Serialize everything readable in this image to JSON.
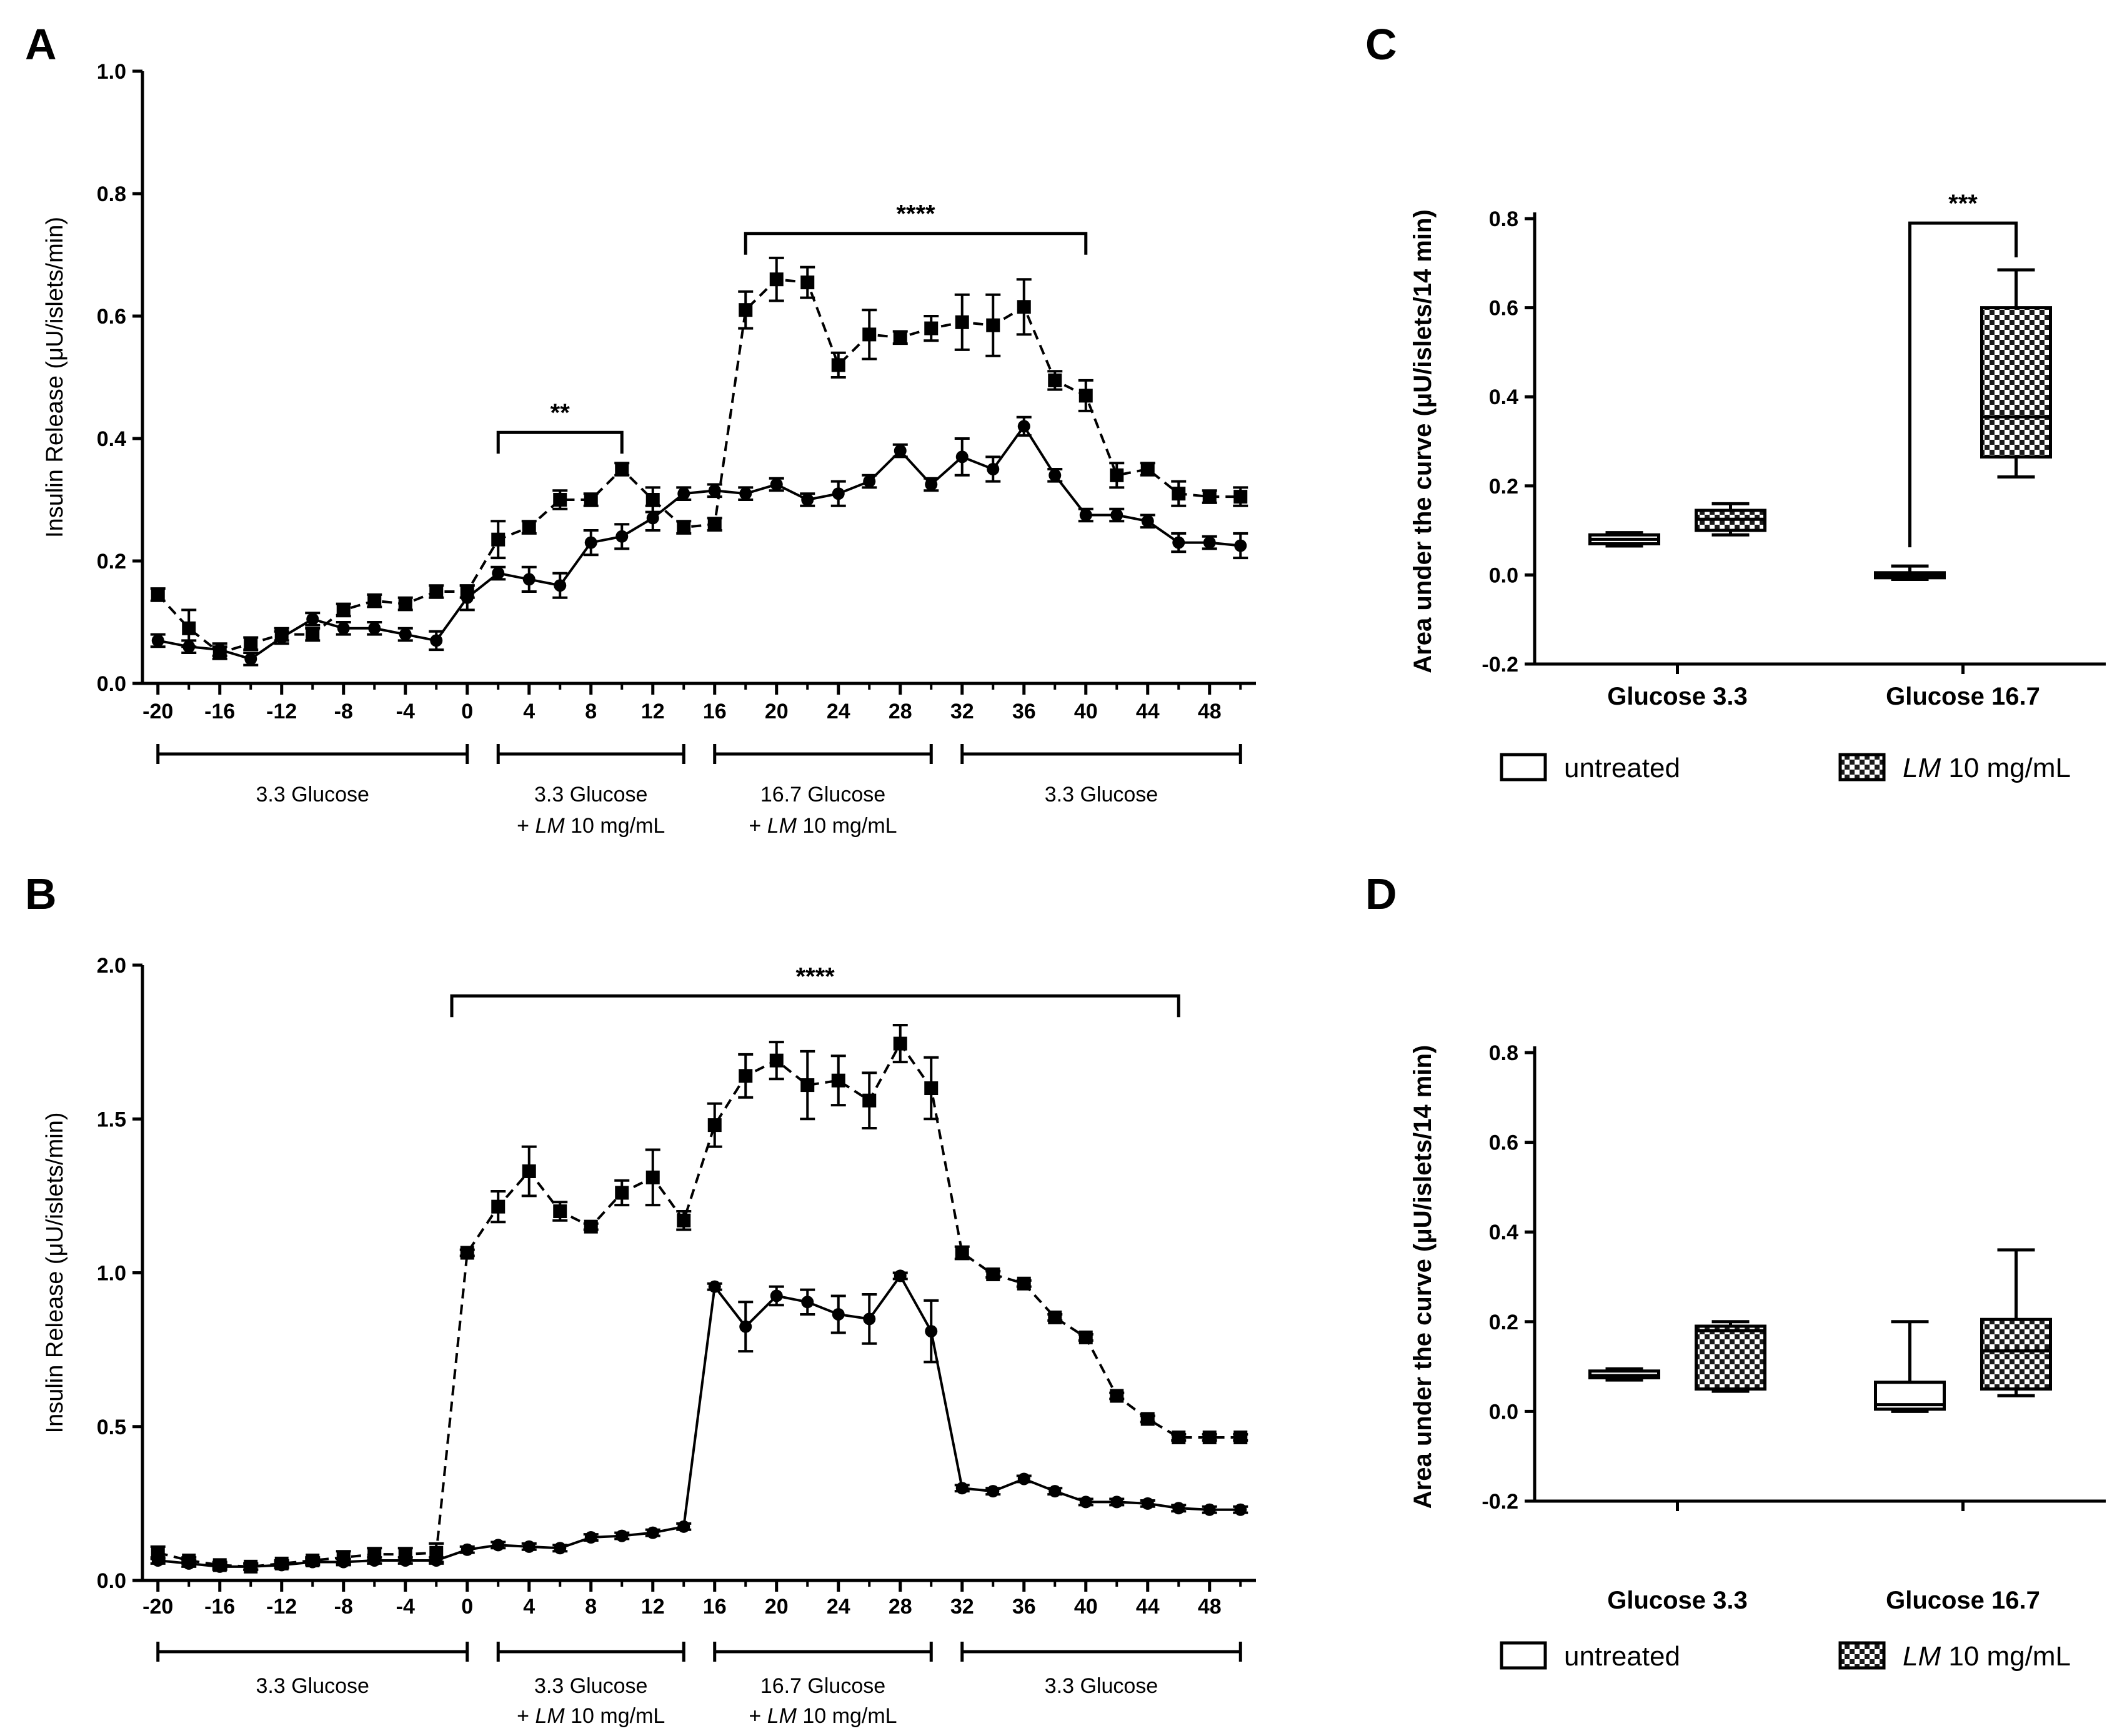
{
  "chart_data": [
    {
      "panel": "A",
      "type": "line",
      "ylabel": "Insulin Release (μU/islets/min)",
      "ylim": [
        0,
        1.0
      ],
      "yticks": [
        "0.0",
        "0.2",
        "0.4",
        "0.6",
        "0.8",
        "1.0"
      ],
      "xlim": [
        -21,
        51
      ],
      "xticks": [
        "-20",
        "-16",
        "-12",
        "-8",
        "-4",
        "0",
        "4",
        "8",
        "12",
        "16",
        "20",
        "24",
        "28",
        "32",
        "36",
        "40",
        "44",
        "48"
      ],
      "x": [
        -20,
        -18,
        -16,
        -14,
        -12,
        -10,
        -8,
        -6,
        -4,
        -2,
        0,
        2,
        4,
        6,
        8,
        10,
        12,
        14,
        16,
        18,
        20,
        22,
        24,
        26,
        28,
        30,
        32,
        34,
        36,
        38,
        40,
        42,
        44,
        46,
        48,
        50
      ],
      "series": [
        {
          "name": "circle-solid",
          "line_style": "solid",
          "marker": "circle",
          "values": [
            0.07,
            0.06,
            0.055,
            0.04,
            0.075,
            0.105,
            0.09,
            0.09,
            0.08,
            0.07,
            0.14,
            0.18,
            0.17,
            0.16,
            0.23,
            0.24,
            0.27,
            0.31,
            0.315,
            0.31,
            0.325,
            0.3,
            0.31,
            0.33,
            0.38,
            0.325,
            0.37,
            0.35,
            0.42,
            0.34,
            0.275,
            0.275,
            0.265,
            0.23,
            0.23,
            0.225
          ],
          "errors": [
            0.01,
            0.01,
            0.01,
            0.01,
            0.01,
            0.01,
            0.01,
            0.01,
            0.01,
            0.015,
            0.02,
            0.01,
            0.02,
            0.02,
            0.02,
            0.02,
            0.02,
            0.01,
            0.01,
            0.01,
            0.01,
            0.01,
            0.02,
            0.01,
            0.01,
            0.01,
            0.03,
            0.02,
            0.015,
            0.01,
            0.01,
            0.01,
            0.01,
            0.015,
            0.01,
            0.02
          ]
        },
        {
          "name": "square-dashed",
          "line_style": "dashed",
          "marker": "square",
          "values": [
            0.145,
            0.09,
            0.05,
            0.065,
            0.08,
            0.08,
            0.12,
            0.135,
            0.13,
            0.15,
            0.15,
            0.235,
            0.255,
            0.3,
            0.3,
            0.35,
            0.3,
            0.255,
            0.26,
            0.61,
            0.66,
            0.655,
            0.52,
            0.57,
            0.565,
            0.58,
            0.59,
            0.585,
            0.615,
            0.495,
            0.47,
            0.34,
            0.35,
            0.31,
            0.305,
            0.305
          ],
          "errors": [
            0.01,
            0.03,
            0.01,
            0.01,
            0.01,
            0.01,
            0.01,
            0.01,
            0.01,
            0.01,
            0.01,
            0.03,
            0.01,
            0.015,
            0.01,
            0.01,
            0.02,
            0.01,
            0.01,
            0.03,
            0.035,
            0.025,
            0.02,
            0.04,
            0.01,
            0.02,
            0.045,
            0.05,
            0.045,
            0.015,
            0.025,
            0.02,
            0.01,
            0.02,
            0.01,
            0.015
          ]
        }
      ],
      "significance": [
        {
          "label": "**",
          "x_start": 2,
          "x_end": 10
        },
        {
          "label": "****",
          "x_start": 18,
          "x_end": 40
        }
      ],
      "phases": [
        {
          "line1": "3.3 Glucose",
          "line2_lm": "",
          "line2_rest": "",
          "x_start": -20,
          "x_end": 0
        },
        {
          "line1": "3.3 Glucose",
          "line2_lm": "LM",
          "line2_rest": "10 mg/mL",
          "x_start": 2,
          "x_end": 14
        },
        {
          "line1": "16.7 Glucose",
          "line2_lm": "LM",
          "line2_rest": "10 mg/mL",
          "x_start": 16,
          "x_end": 30
        },
        {
          "line1": "3.3 Glucose",
          "line2_lm": "",
          "line2_rest": "",
          "x_start": 32,
          "x_end": 50
        }
      ]
    },
    {
      "panel": "B",
      "type": "line",
      "ylabel": "Insulin Release (μU/islets/min)",
      "ylim": [
        0,
        2.0
      ],
      "yticks": [
        "0.0",
        "0.5",
        "1.0",
        "1.5",
        "2.0"
      ],
      "xlim": [
        -21,
        51
      ],
      "xticks": [
        "-20",
        "-16",
        "-12",
        "-8",
        "-4",
        "0",
        "4",
        "8",
        "12",
        "16",
        "20",
        "24",
        "28",
        "32",
        "36",
        "40",
        "44",
        "48"
      ],
      "x": [
        -20,
        -18,
        -16,
        -14,
        -12,
        -10,
        -8,
        -6,
        -4,
        -2,
        0,
        2,
        4,
        6,
        8,
        10,
        12,
        14,
        16,
        18,
        20,
        22,
        24,
        26,
        28,
        30,
        32,
        34,
        36,
        38,
        40,
        42,
        44,
        46,
        48,
        50
      ],
      "series": [
        {
          "name": "circle-solid",
          "line_style": "solid",
          "marker": "circle",
          "values": [
            0.065,
            0.055,
            0.045,
            0.045,
            0.05,
            0.06,
            0.06,
            0.065,
            0.065,
            0.065,
            0.1,
            0.115,
            0.11,
            0.105,
            0.14,
            0.145,
            0.155,
            0.175,
            0.955,
            0.825,
            0.925,
            0.905,
            0.865,
            0.85,
            0.99,
            0.81,
            0.3,
            0.29,
            0.33,
            0.29,
            0.255,
            0.255,
            0.25,
            0.235,
            0.23,
            0.23
          ],
          "errors": [
            0.01,
            0.01,
            0.01,
            0.01,
            0.01,
            0.01,
            0.01,
            0.01,
            0.01,
            0.01,
            0.01,
            0.01,
            0.01,
            0.01,
            0.01,
            0.01,
            0.01,
            0.01,
            0.01,
            0.08,
            0.03,
            0.04,
            0.06,
            0.08,
            0.01,
            0.1,
            0.01,
            0.01,
            0.01,
            0.01,
            0.01,
            0.01,
            0.01,
            0.01,
            0.01,
            0.01
          ]
        },
        {
          "name": "square-dashed",
          "line_style": "dashed",
          "marker": "square",
          "values": [
            0.09,
            0.065,
            0.05,
            0.045,
            0.055,
            0.065,
            0.075,
            0.085,
            0.085,
            0.09,
            1.065,
            1.215,
            1.33,
            1.2,
            1.15,
            1.26,
            1.31,
            1.17,
            1.48,
            1.64,
            1.69,
            1.61,
            1.625,
            1.56,
            1.745,
            1.6,
            1.065,
            0.995,
            0.965,
            0.855,
            0.79,
            0.6,
            0.525,
            0.465,
            0.465,
            0.465
          ],
          "errors": [
            0.02,
            0.01,
            0.01,
            0.01,
            0.01,
            0.01,
            0.02,
            0.02,
            0.02,
            0.03,
            0.01,
            0.05,
            0.08,
            0.03,
            0.01,
            0.04,
            0.09,
            0.03,
            0.07,
            0.07,
            0.06,
            0.11,
            0.08,
            0.09,
            0.06,
            0.1,
            0.02,
            0.01,
            0.01,
            0.01,
            0.01,
            0.01,
            0.01,
            0.01,
            0.01,
            0.01
          ]
        }
      ],
      "significance": [
        {
          "label": "****",
          "x_start": -1,
          "x_end": 46
        }
      ],
      "phases": [
        {
          "line1": "3.3 Glucose",
          "line2_lm": "",
          "line2_rest": "",
          "x_start": -20,
          "x_end": 0
        },
        {
          "line1": "3.3 Glucose",
          "line2_lm": "LM",
          "line2_rest": "10 mg/mL",
          "x_start": 2,
          "x_end": 14
        },
        {
          "line1": "16.7 Glucose",
          "line2_lm": "LM",
          "line2_rest": "10 mg/mL",
          "x_start": 16,
          "x_end": 30
        },
        {
          "line1": "3.3 Glucose",
          "line2_lm": "",
          "line2_rest": "",
          "x_start": 32,
          "x_end": 50
        }
      ]
    },
    {
      "panel": "C",
      "type": "box",
      "ylabel": "Area under the curve (μU/islets/14 min)",
      "ylim": [
        -0.2,
        0.8
      ],
      "yticks": [
        "-0.2",
        "0.0",
        "0.2",
        "0.4",
        "0.6",
        "0.8"
      ],
      "categories": [
        "Glucose 3.3",
        "Glucose 16.7"
      ],
      "series": [
        {
          "name": "untreated",
          "pattern": "open",
          "boxes": [
            {
              "min": 0.065,
              "q1": 0.07,
              "median": 0.08,
              "q3": 0.09,
              "max": 0.095
            },
            {
              "min": -0.01,
              "q1": -0.005,
              "median": 0.0,
              "q3": 0.005,
              "max": 0.02
            }
          ]
        },
        {
          "name": "LM 10 mg/mL",
          "pattern": "checkered",
          "boxes": [
            {
              "min": 0.09,
              "q1": 0.1,
              "median": 0.125,
              "q3": 0.145,
              "max": 0.16
            },
            {
              "min": 0.22,
              "q1": 0.265,
              "median": 0.355,
              "q3": 0.6,
              "max": 0.685
            }
          ]
        }
      ],
      "significance": [
        {
          "label": "***",
          "category": "Glucose 16.7"
        }
      ],
      "legend": {
        "untreated": "untreated",
        "treated_lm": "LM",
        "treated_rest": "10 mg/mL"
      }
    },
    {
      "panel": "D",
      "type": "box",
      "ylabel": "Area under the curve (μU/islets/14 min)",
      "ylim": [
        -0.2,
        0.8
      ],
      "yticks": [
        "-0.2",
        "0.0",
        "0.2",
        "0.4",
        "0.6",
        "0.8"
      ],
      "categories": [
        "Glucose 3.3",
        "Glucose 16.7"
      ],
      "series": [
        {
          "name": "untreated",
          "pattern": "open",
          "boxes": [
            {
              "min": 0.07,
              "q1": 0.075,
              "median": 0.08,
              "q3": 0.09,
              "max": 0.095
            },
            {
              "min": 0.0,
              "q1": 0.005,
              "median": 0.015,
              "q3": 0.065,
              "max": 0.2
            }
          ]
        },
        {
          "name": "LM 10 mg/mL",
          "pattern": "checkered",
          "boxes": [
            {
              "min": 0.045,
              "q1": 0.05,
              "median": 0.18,
              "q3": 0.19,
              "max": 0.2
            },
            {
              "min": 0.035,
              "q1": 0.05,
              "median": 0.135,
              "q3": 0.205,
              "max": 0.36
            }
          ]
        }
      ],
      "legend": {
        "untreated": "untreated",
        "treated_lm": "LM",
        "treated_rest": "10 mg/mL"
      }
    }
  ]
}
